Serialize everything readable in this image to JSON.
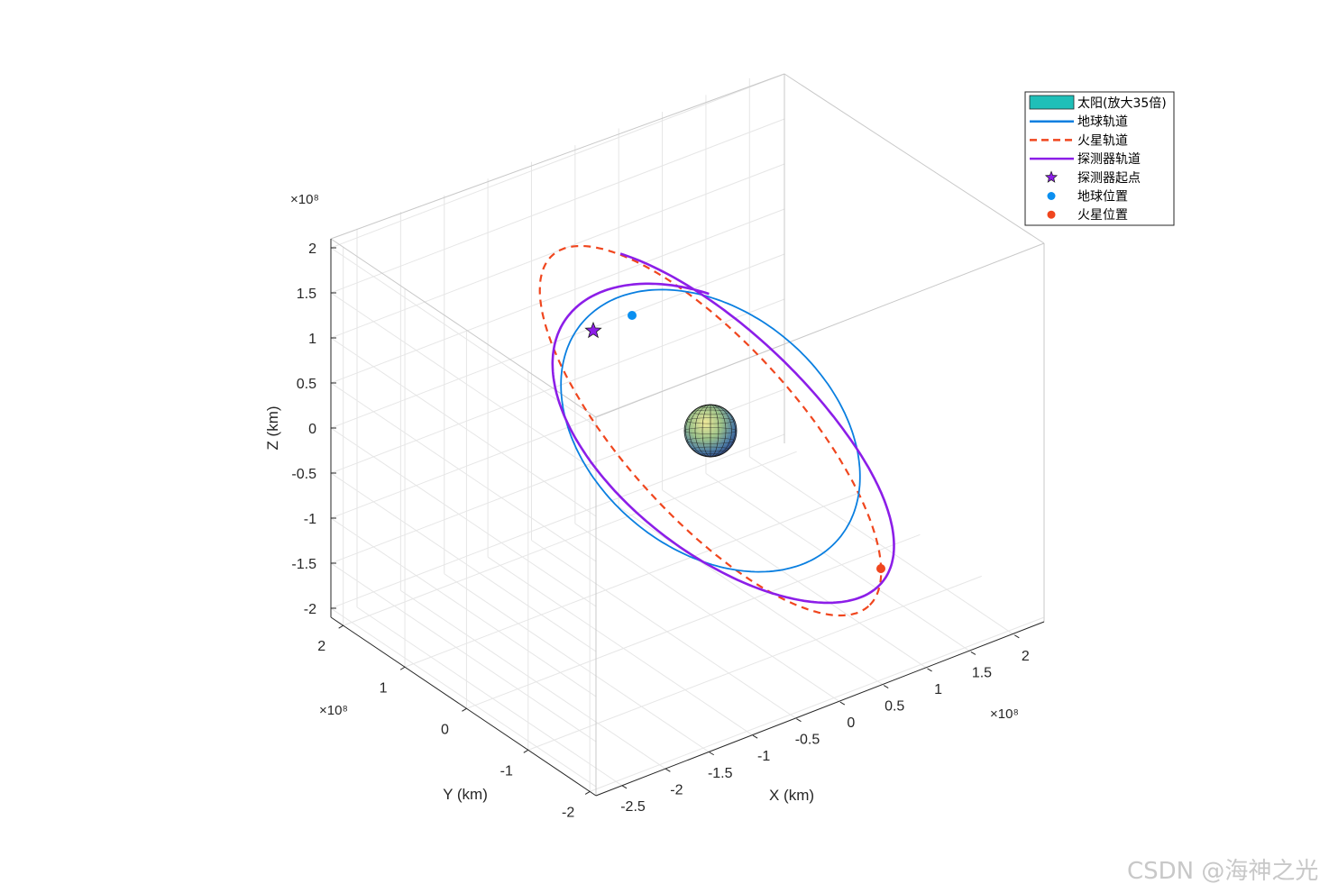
{
  "chart_data": {
    "type": "line3d",
    "title": "",
    "xlabel": "X (km)",
    "ylabel": "Y (km)",
    "zlabel": "Z (km)",
    "exponent_label": "×10⁸",
    "axis_exponent": 8,
    "xlim": [
      -2.8,
      2.4
    ],
    "ylim": [
      -2.1,
      2.2
    ],
    "zlim": [
      -2.1,
      2.1
    ],
    "xticks": [
      -2.5,
      -2,
      -1.5,
      -1,
      -0.5,
      0,
      0.5,
      1,
      1.5,
      2
    ],
    "yticks": [
      -2,
      -1,
      0,
      1,
      2
    ],
    "zticks": [
      -2,
      -1.5,
      -1,
      -0.5,
      0,
      0.5,
      1,
      1.5,
      2
    ],
    "xtick_labels": [
      "-2.5",
      "-2",
      "-1.5",
      "-1",
      "-0.5",
      "0",
      "0.5",
      "1",
      "1.5",
      "2"
    ],
    "ytick_labels": [
      "-2",
      "-1",
      "0",
      "1",
      "2"
    ],
    "ztick_labels": [
      "-2",
      "-1.5",
      "-1",
      "-0.5",
      "0",
      "0.5",
      "1",
      "1.5",
      "2"
    ],
    "grid": true,
    "view": "3d-isometric",
    "legend_position": "top-right",
    "legend": [
      {
        "label": "太阳(放大35倍)",
        "marker": "patch",
        "color": "#1fbfb8"
      },
      {
        "label": "地球轨道",
        "marker": "line-solid",
        "color": "#0a7fe0"
      },
      {
        "label": "火星轨道",
        "marker": "line-dashed",
        "color": "#f0461e"
      },
      {
        "label": "探测器轨道",
        "marker": "line-solid",
        "color": "#8c1ee8"
      },
      {
        "label": "探测器起点",
        "marker": "star",
        "color": "#8c1ee8"
      },
      {
        "label": "地球位置",
        "marker": "dot",
        "color": "#0a8ff0"
      },
      {
        "label": "火星位置",
        "marker": "dot",
        "color": "#f0461e"
      }
    ],
    "series": [
      {
        "name": "地球轨道",
        "kind": "ellipse",
        "center": [
          0,
          0,
          0
        ],
        "a": 1.5,
        "b": 1.5,
        "color": "#0a7fe0",
        "style": "solid"
      },
      {
        "name": "火星轨道",
        "kind": "ellipse",
        "center": [
          0,
          0,
          0
        ],
        "a": 2.3,
        "b": 2.3,
        "color": "#f0461e",
        "style": "dashed"
      },
      {
        "name": "探测器轨道",
        "kind": "spiral",
        "r_start": 1.5,
        "r_end": 2.4,
        "color": "#8c1ee8",
        "style": "solid"
      }
    ],
    "points": [
      {
        "name": "探测器起点",
        "marker": "star",
        "color": "#8c1ee8"
      },
      {
        "name": "地球位置",
        "marker": "dot",
        "color": "#0a8ff0"
      },
      {
        "name": "火星位置",
        "marker": "dot",
        "color": "#f0461e"
      }
    ],
    "sun": {
      "name": "太阳(放大35倍)",
      "center": [
        0,
        0,
        0
      ],
      "color": "#5a8a8a"
    }
  },
  "watermark": "CSDN @海神之光"
}
